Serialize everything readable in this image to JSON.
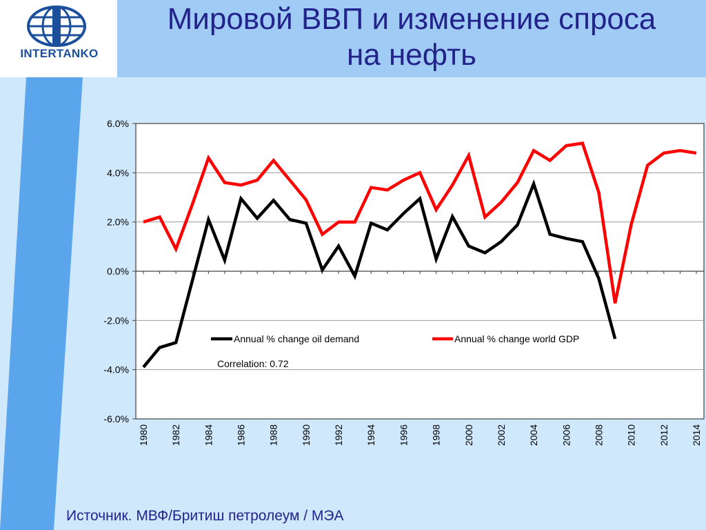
{
  "logo": {
    "name": "INTERTANKO"
  },
  "slide": {
    "title_line1": "Мировой ВВП и изменение спроса",
    "title_line2": "на нефть",
    "source": "Источник. МВФ/Бритиш петролеум / МЭА"
  },
  "colors": {
    "title": "#23238c",
    "title_band": "#9fcbf5",
    "content_bg": "#cfe8fb",
    "stripe": "#5aa5ec",
    "oil_series": "#000000",
    "gdp_series": "#ff0000",
    "logo": "#1b4f9c"
  },
  "chart_data": {
    "type": "line",
    "title": "",
    "xlabel": "",
    "ylabel": "",
    "ylim": [
      -0.06,
      0.06
    ],
    "y_ticks": [
      "6.0%",
      "4.0%",
      "2.0%",
      "0.0%",
      "-2.0%",
      "-4.0%",
      "-6.0%"
    ],
    "y_tick_values": [
      0.06,
      0.04,
      0.02,
      0.0,
      -0.02,
      -0.04,
      -0.06
    ],
    "x": [
      1980,
      1981,
      1982,
      1983,
      1984,
      1985,
      1986,
      1987,
      1988,
      1989,
      1990,
      1991,
      1992,
      1993,
      1994,
      1995,
      1996,
      1997,
      1998,
      1999,
      2000,
      2001,
      2002,
      2003,
      2004,
      2005,
      2006,
      2007,
      2008,
      2009,
      2010,
      2011,
      2012,
      2013,
      2014
    ],
    "x_tick_labels": [
      "1980",
      "1982",
      "1984",
      "1986",
      "1988",
      "1990",
      "1992",
      "1994",
      "1996",
      "1998",
      "2000",
      "2002",
      "2004",
      "2006",
      "2008",
      "2010",
      "2012",
      "2014"
    ],
    "grid": true,
    "legend_position": "center",
    "annotation": "Correlation: 0.72",
    "series": [
      {
        "name": "Annual % change oil demand",
        "color": "#000000",
        "values": [
          -0.039,
          -0.031,
          -0.029,
          -0.004,
          0.021,
          0.0045,
          0.0295,
          0.0215,
          0.0288,
          0.021,
          0.0195,
          0.0005,
          0.0102,
          -0.002,
          0.0195,
          0.0168,
          0.0235,
          0.0295,
          0.005,
          0.0222,
          0.0102,
          0.0075,
          0.012,
          0.0188,
          0.0355,
          0.015,
          0.0133,
          0.012,
          -0.003,
          -0.0275,
          null,
          null,
          null,
          null,
          null
        ]
      },
      {
        "name": "Annual % change world GDP",
        "color": "#ff0000",
        "values": [
          0.02,
          0.022,
          0.009,
          0.027,
          0.046,
          0.036,
          0.035,
          0.037,
          0.045,
          0.037,
          0.029,
          0.015,
          0.02,
          0.02,
          0.034,
          0.033,
          0.037,
          0.04,
          0.025,
          0.035,
          0.047,
          0.022,
          0.028,
          0.036,
          0.049,
          0.045,
          0.051,
          0.052,
          0.032,
          -0.013,
          0.019,
          0.043,
          0.048,
          0.049,
          0.048
        ]
      }
    ]
  }
}
